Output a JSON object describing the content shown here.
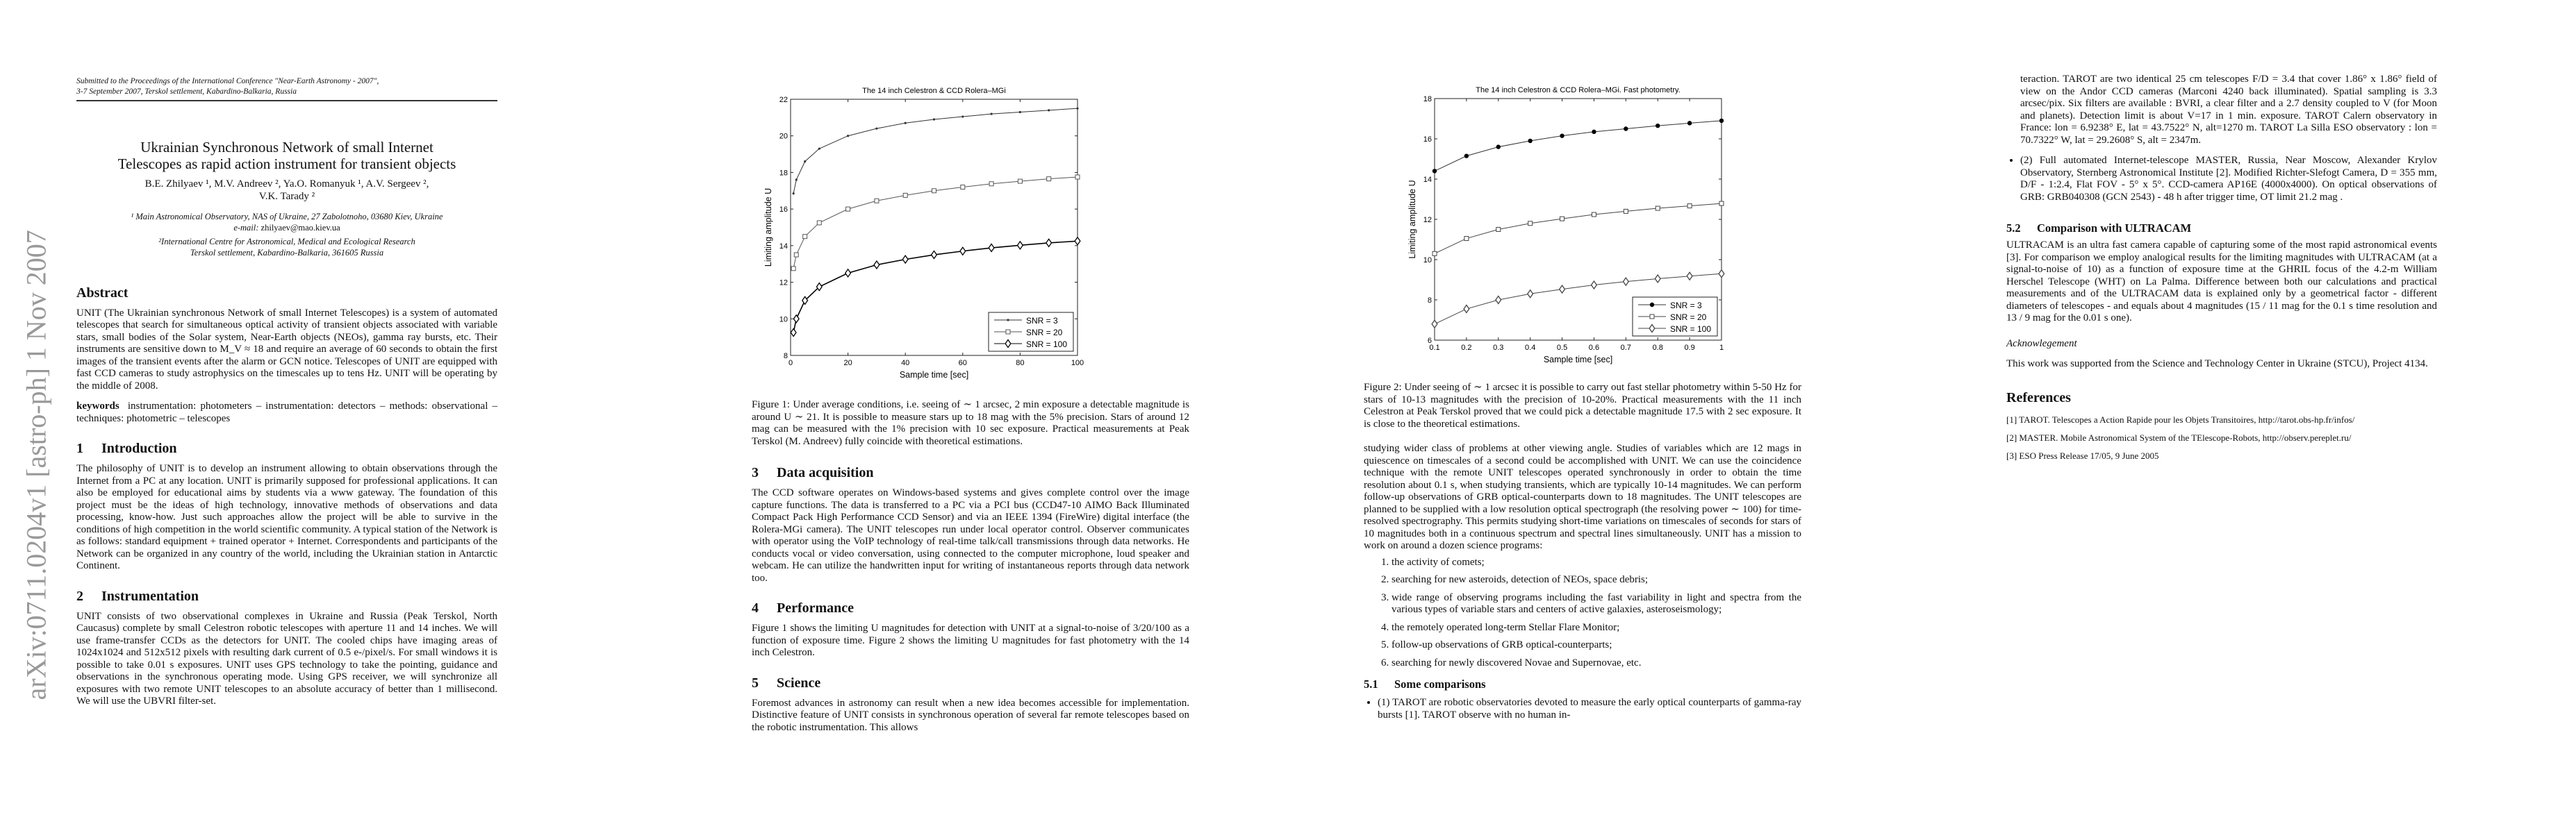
{
  "watermark": "arXiv:0711.0204v1  [astro-ph]  1 Nov 2007",
  "page1": {
    "header_line1": "Submitted to the Proceedings of the International Conference \"Near-Earth Astronomy - 2007\",",
    "header_line2": "3-7 September 2007, Terskol settlement, Kabardino-Balkaria, Russia",
    "title_line1": "Ukrainian Synchronous Network of small Internet",
    "title_line2": "Telescopes as rapid action instrument for transient objects",
    "authors_line1": "B.E. Zhilyaev ¹, M.V. Andreev ², Ya.O. Romanyuk ¹, A.V. Sergeev ²,",
    "authors_line2": "V.K. Tarady ²",
    "aff1": "¹ Main Astronomical Observatory, NAS of Ukraine, 27 Zabolotnoho, 03680 Kiev, Ukraine",
    "email_label": "e-mail:",
    "email": "zhilyaev@mao.kiev.ua",
    "aff2_line1": "²International Centre for Astronomical, Medical and Ecological Research",
    "aff2_line2": "Terskol settlement, Kabardino-Balkaria, 361605 Russia",
    "abstract_heading": "Abstract",
    "abstract": "UNIT (The Ukrainian synchronous Network of small Internet Telescopes) is a system of automated telescopes that search for simultaneous optical activity of transient objects associated with variable stars, small bodies of the Solar system, Near-Earth objects (NEOs), gamma ray bursts, etc. Their instruments are sensitive down to M_V ≈ 18 and require an average of 60 seconds to obtain the first images of the transient events after the alarm or GCN notice. Telescopes of UNIT are equipped with fast CCD cameras to study astrophysics on the timescales up to tens Hz. UNIT will be operating by the middle of 2008.",
    "keywords_label": "keywords",
    "keywords": "instrumentation: photometers – instrumentation: detectors – methods: observational – techniques: photometric – telescopes",
    "s1_num": "1",
    "s1_title": "Introduction",
    "s1_text": "The philosophy of UNIT is to develop an instrument allowing to obtain observations through the Internet from a PC at any location. UNIT is primarily supposed for professional applications. It can also be employed for educational aims by students via a www gateway. The foundation of this project must be the ideas of high technology, innovative methods of observations and data processing, know-how. Just such approaches allow the project will be able to survive in the conditions of high competition in the world scientific community. A typical station of the Network is as follows: standard equipment + trained operator + Internet. Correspondents and participants of the Network can be organized in any country of the world, including the Ukrainian station in Antarctic Continent.",
    "s2_num": "2",
    "s2_title": "Instrumentation",
    "s2_text": "UNIT consists of two observational complexes in Ukraine and Russia (Peak Terskol, North Caucasus) complete by small Celestron robotic telescopes with aperture 11 and 14 inches. We will use frame-transfer CCDs as the detectors for UNIT. The cooled chips have imaging areas of 1024x1024 and 512x512 pixels with resulting dark current of 0.5 e-/pixel/s. For small windows it is possible to take 0.01 s exposures. UNIT uses GPS technology to take the pointing, guidance and observations in the synchronous operating mode. Using GPS receiver, we will synchronize all exposures with two remote UNIT telescopes to an absolute accuracy of better than 1 millisecond. We will use the UBVRI filter-set."
  },
  "page2": {
    "fig1_caption": "Figure 1: Under average conditions, i.e. seeing of ∼ 1 arcsec, 2 min exposure a detectable magnitude is around U ∼ 21. It is possible to measure stars up to 18 mag with the 5% precision. Stars of around 12 mag can be measured with the 1% precision with 10 sec exposure. Practical measurements at Peak Terskol (M. Andreev) fully coincide with theoretical estimations.",
    "s3_num": "3",
    "s3_title": "Data acquisition",
    "s3_text": "The CCD software operates on Windows-based systems and gives complete control over the image capture functions. The data is transferred to a PC via a PCI bus (CCD47-10 AIMO Back Illuminated Compact Pack High Performance CCD Sensor) and via an IEEE 1394 (FireWire) digital interface (the Rolera-MGi camera). The UNIT telescopes run under local operator control. Observer communicates with operator using the VoIP technology of real-time talk/call transmissions through data networks. He conducts vocal or video conversation, using connected to the computer microphone, loud speaker and webcam. He can utilize the handwritten input for writing of instantaneous reports through data network too.",
    "s4_num": "4",
    "s4_title": "Performance",
    "s4_text": "Figure 1 shows the limiting U magnitudes for detection with UNIT at a signal-to-noise of 3/20/100 as a function of exposure time. Figure 2 shows the limiting U magnitudes for fast photometry with the 14 inch Celestron.",
    "s5_num": "5",
    "s5_title": "Science",
    "s5_text": "Foremost advances in astronomy can result when a new idea becomes accessible for implementation. Distinctive feature of UNIT consists in synchronous operation of several far remote telescopes based on the robotic instrumentation. This allows"
  },
  "page3": {
    "fig2_caption": "Figure 2: Under seeing of ∼ 1 arcsec it is possible to carry out fast stellar photometry within 5-50 Hz for stars of 10-13 magnitudes with the precision of 10-20%. Practical measurements with the 11 inch Celestron at Peak Terskol proved that we could pick a detectable magnitude 17.5 with 2 sec exposure. It is close to the theoretical estimations.",
    "text": "studying wider class of problems at other viewing angle. Studies of variables which are 12 mags in quiescence on timescales of a second could be accomplished with UNIT. We can use the coincidence technique with the remote UNIT telescopes operated synchronously in order to obtain the time resolution about 0.1 s, when studying transients, which are typically 10-14 magnitudes. We can perform follow-up observations of GRB optical-counterparts down to 18 magnitudes. The UNIT telescopes are planned to be supplied with a low resolution optical spectrograph (the resolving power ∼ 100) for time-resolved spectrography. This permits studying short-time variations on timescales of seconds for stars of 10 magnitudes both in a continuous spectrum and spectral lines simultaneously. UNIT has a mission to work on around a dozen science programs:",
    "programs": [
      "the activity of comets;",
      "searching for new asteroids, detection of NEOs, space debris;",
      "wide range of observing programs including the fast variability in light and spectra from the various types of variable stars and centers of active galaxies, asteroseismology;",
      "the remotely operated long-term Stellar Flare Monitor;",
      "follow-up observations of GRB optical-counterparts;",
      "searching for newly discovered Novae and Supernovae, etc."
    ],
    "s51_num": "5.1",
    "s51_title": "Some comparisons",
    "bullet1": "(1) TAROT are robotic observatories devoted to measure the early optical counterparts of gamma-ray bursts [1]. TAROT observe with no human in-"
  },
  "page4": {
    "bullet1_cont": "teraction. TAROT are two identical 25 cm telescopes F/D = 3.4 that cover 1.86° x 1.86° field of view on the Andor CCD cameras (Marconi 4240 back illuminated). Spatial sampling is 3.3 arcsec/pix. Six filters are available : BVRI, a clear filter and a 2.7 density coupled to V (for Moon and planets). Detection limit is about V=17 in 1 min. exposure. TAROT Calern observatory in France: lon = 6.9238° E, lat = 43.7522° N, alt=1270 m. TAROT La Silla ESO observatory : lon = 70.7322° W, lat = 29.2608° S, alt = 2347m.",
    "bullet2": "(2) Full automated Internet-telescope MASTER, Russia, Near Moscow, Alexander Krylov Observatory, Sternberg Astronomical Institute [2]. Modified Richter-Slefogt Camera, D = 355 mm, D/F - 1:2.4, Flat FOV - 5° x 5°. CCD-camera AP16E (4000x4000). On optical observations of GRB: GRB040308 (GCN 2543) - 48 h after trigger time, OT limit 21.2 mag .",
    "s52_num": "5.2",
    "s52_title": "Comparison with ULTRACAM",
    "s52_text": "ULTRACAM is an ultra fast camera capable of capturing some of the most rapid astronomical events [3]. For comparison we employ analogical results for the limiting magnitudes with ULTRACAM (at a signal-to-noise of 10) as a function of exposure time at the GHRIL focus of the 4.2-m William Herschel Telescope (WHT) on La Palma. Difference between both our calculations and practical measurements and of the ULTRACAM data is explained only by a geometrical factor - different diameters of telescopes - and equals about 4 magnitudes (15 / 11 mag for the 0.1 s time resolution and 13 / 9 mag for the 0.01 s one).",
    "ack_heading": "Acknowlegement",
    "ack_text": "This work was supported from the Science and Technology Center in Ukraine (STCU), Project 4134.",
    "refs_heading": "References",
    "refs": [
      "[1] TAROT. Telescopes a Action Rapide pour les Objets Transitoires, http://tarot.obs-hp.fr/infos/",
      "[2] MASTER. Mobile Astronomical System of the TElescope-Robots, http://observ.pereplet.ru/",
      "[3] ESO Press Release 17/05, 9 June 2005"
    ]
  },
  "chart_data": [
    {
      "type": "line",
      "title": "The 14 inch Celestron & CCD Rolera–MGi",
      "xlabel": "Sample time [sec]",
      "ylabel": "Limiting amplitude U",
      "xlim": [
        0,
        100
      ],
      "ylim": [
        8,
        22
      ],
      "xticks": [
        0,
        20,
        40,
        60,
        80,
        100
      ],
      "yticks": [
        8,
        10,
        12,
        14,
        16,
        18,
        20,
        22
      ],
      "legend_position": "bottom-right",
      "x": [
        1,
        2,
        5,
        10,
        20,
        30,
        40,
        50,
        60,
        70,
        80,
        90,
        100
      ],
      "series": [
        {
          "name": "SNR = 3",
          "marker": "dot",
          "color": "#333333",
          "values": [
            16.85,
            17.6,
            18.6,
            19.3,
            20.0,
            20.4,
            20.7,
            20.9,
            21.05,
            21.2,
            21.3,
            21.4,
            21.5
          ]
        },
        {
          "name": "SNR = 20",
          "marker": "square",
          "color": "#555555",
          "values": [
            12.75,
            13.5,
            14.5,
            15.25,
            16.0,
            16.45,
            16.75,
            17.0,
            17.2,
            17.38,
            17.52,
            17.65,
            17.75
          ]
        },
        {
          "name": "SNR = 100",
          "marker": "diamond",
          "color": "#000000",
          "values": [
            9.25,
            10.0,
            11.0,
            11.75,
            12.5,
            12.95,
            13.25,
            13.5,
            13.7,
            13.88,
            14.02,
            14.15,
            14.25
          ]
        }
      ]
    },
    {
      "type": "line",
      "title": "The 14 inch Celestron & CCD Rolera–MGi. Fast photometry.",
      "xlabel": "Sample time [sec]",
      "ylabel": "Limiting amplitude U",
      "xlim": [
        0.1,
        1
      ],
      "ylim": [
        6,
        18
      ],
      "xticks": [
        0.1,
        0.2,
        0.3,
        0.4,
        0.5,
        0.6,
        0.7,
        0.8,
        0.9,
        1
      ],
      "yticks": [
        6,
        8,
        10,
        12,
        14,
        16,
        18
      ],
      "legend_position": "bottom-right",
      "x": [
        0.1,
        0.2,
        0.3,
        0.4,
        0.5,
        0.6,
        0.7,
        0.8,
        0.9,
        1.0
      ],
      "series": [
        {
          "name": "SNR = 3",
          "marker": "filled-circle",
          "color": "#333333",
          "values": [
            14.4,
            15.15,
            15.6,
            15.9,
            16.15,
            16.35,
            16.5,
            16.65,
            16.78,
            16.9
          ]
        },
        {
          "name": "SNR = 20",
          "marker": "square",
          "color": "#444444",
          "values": [
            10.3,
            11.05,
            11.5,
            11.8,
            12.03,
            12.24,
            12.4,
            12.55,
            12.67,
            12.79
          ]
        },
        {
          "name": "SNR = 100",
          "marker": "diamond",
          "color": "#444444",
          "values": [
            6.8,
            7.55,
            8.0,
            8.3,
            8.53,
            8.74,
            8.91,
            9.05,
            9.18,
            9.3
          ]
        }
      ]
    }
  ]
}
